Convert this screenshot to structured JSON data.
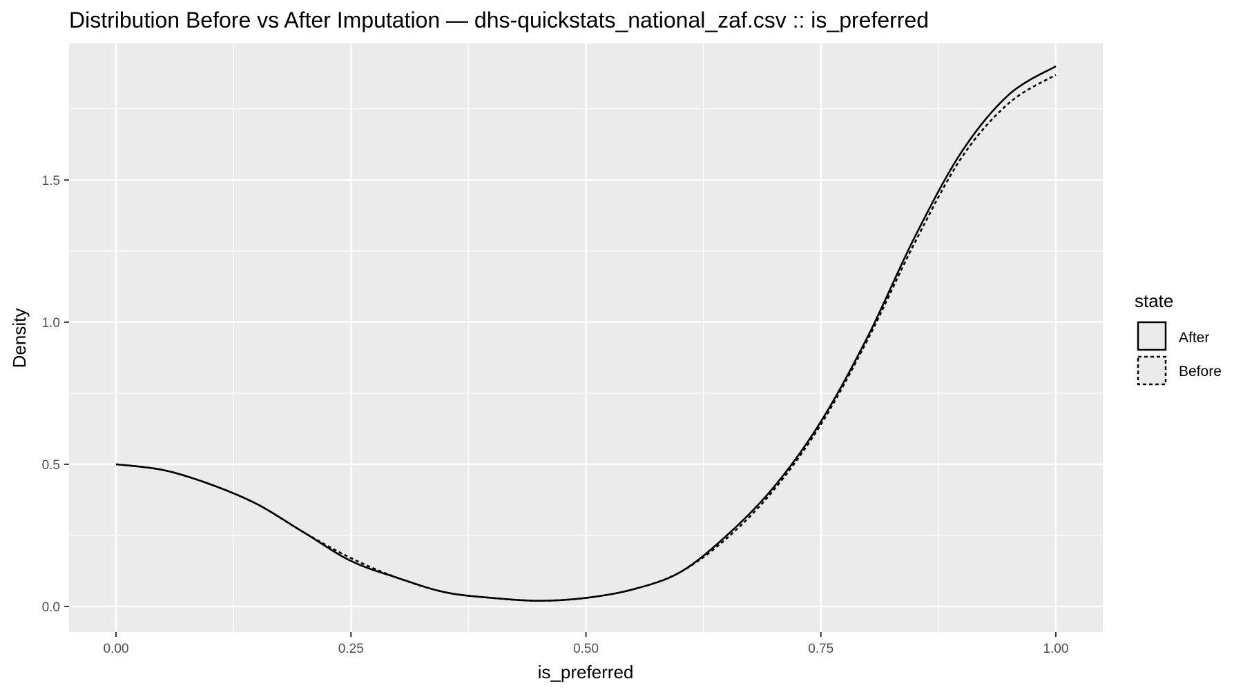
{
  "chart_data": {
    "type": "line",
    "title": "Distribution Before vs After Imputation — dhs-quickstats_national_zaf.csv :: is_preferred",
    "xlabel": "is_preferred",
    "ylabel": "Density",
    "xlim": [
      -0.05,
      1.05
    ],
    "ylim": [
      -0.09,
      1.98
    ],
    "x_ticks": [
      0.0,
      0.25,
      0.5,
      0.75,
      1.0
    ],
    "x_tick_labels": [
      "0.00",
      "0.25",
      "0.50",
      "0.75",
      "1.00"
    ],
    "y_ticks": [
      0.0,
      0.5,
      1.0,
      1.5
    ],
    "y_tick_labels": [
      "0.0",
      "0.5",
      "1.0",
      "1.5"
    ],
    "grid": true,
    "legend": {
      "title": "state",
      "position": "right"
    },
    "series": [
      {
        "name": "After",
        "linetype": "solid",
        "color": "#000000",
        "x": [
          0.0,
          0.05,
          0.1,
          0.15,
          0.2,
          0.25,
          0.3,
          0.35,
          0.4,
          0.45,
          0.5,
          0.55,
          0.6,
          0.65,
          0.7,
          0.75,
          0.8,
          0.85,
          0.9,
          0.95,
          1.0
        ],
        "y": [
          0.5,
          0.48,
          0.43,
          0.36,
          0.26,
          0.16,
          0.1,
          0.05,
          0.03,
          0.02,
          0.03,
          0.06,
          0.12,
          0.25,
          0.42,
          0.65,
          0.95,
          1.3,
          1.6,
          1.8,
          1.9
        ]
      },
      {
        "name": "Before",
        "linetype": "dashed",
        "color": "#000000",
        "x": [
          0.0,
          0.05,
          0.1,
          0.15,
          0.2,
          0.25,
          0.3,
          0.35,
          0.4,
          0.45,
          0.5,
          0.55,
          0.6,
          0.65,
          0.7,
          0.75,
          0.8,
          0.85,
          0.9,
          0.95,
          1.0
        ],
        "y": [
          0.5,
          0.48,
          0.43,
          0.36,
          0.26,
          0.17,
          0.1,
          0.05,
          0.03,
          0.02,
          0.03,
          0.06,
          0.12,
          0.24,
          0.41,
          0.64,
          0.94,
          1.28,
          1.58,
          1.77,
          1.87
        ]
      }
    ]
  }
}
